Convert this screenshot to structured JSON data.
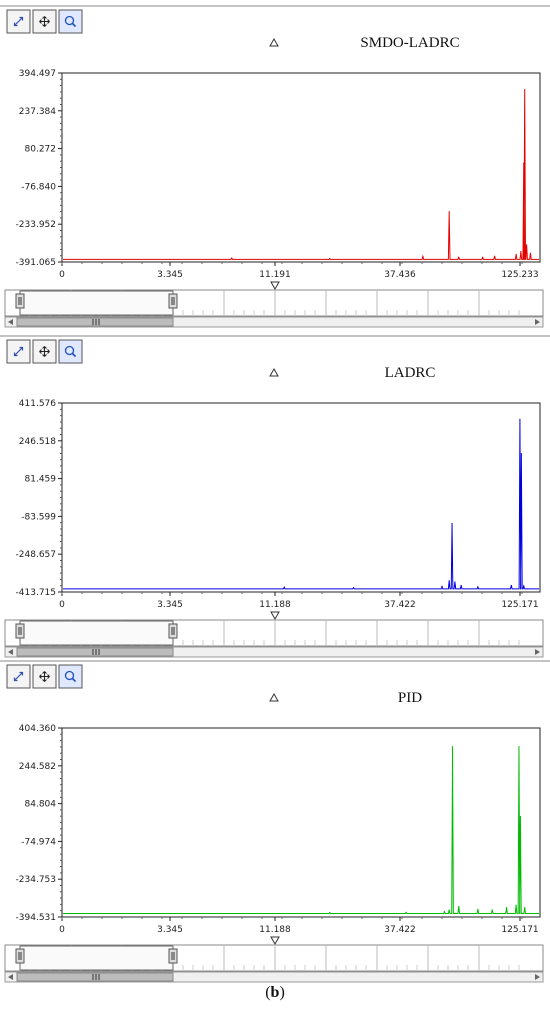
{
  "caption": {
    "open": "(",
    "letter": "b",
    "close": ")"
  },
  "colors": {
    "SMDO-LADRC": "#e60000",
    "LADRC": "#0000e0",
    "PID": "#00bb00"
  },
  "toolbar": {
    "icons": [
      "zoom-extents-icon",
      "pan-icon",
      "zoom-icon"
    ]
  },
  "chart_data": [
    {
      "type": "line",
      "title": "SMDO-LADRC",
      "color": "#e60000",
      "xlabel": "",
      "ylabel": "",
      "y_ticks": [
        "394.497",
        "237.384",
        "80.272",
        "-76.840",
        "-233.952",
        "-391.065"
      ],
      "x_ticks": [
        "0",
        "3.345",
        "11.191",
        "37.436",
        "125.233"
      ],
      "ylim": [
        -391.065,
        394.497
      ],
      "baseline": -380,
      "grid": false,
      "peaks": [
        {
          "x": 0.355,
          "y": -375
        },
        {
          "x": 0.56,
          "y": -377
        },
        {
          "x": 0.755,
          "y": -368
        },
        {
          "x": 0.81,
          "y": -182
        },
        {
          "x": 0.83,
          "y": -372
        },
        {
          "x": 0.88,
          "y": -372
        },
        {
          "x": 0.905,
          "y": -367
        },
        {
          "x": 0.95,
          "y": -360
        },
        {
          "x": 0.96,
          "y": -348
        },
        {
          "x": 0.968,
          "y": 325
        },
        {
          "x": 0.966,
          "y": 20
        },
        {
          "x": 0.972,
          "y": -320
        },
        {
          "x": 0.98,
          "y": -355
        }
      ]
    },
    {
      "type": "line",
      "title": "LADRC",
      "color": "#0000e0",
      "xlabel": "",
      "ylabel": "",
      "y_ticks": [
        "411.576",
        "246.518",
        "81.459",
        "-83.599",
        "-248.657",
        "-413.715"
      ],
      "x_ticks": [
        "0",
        "3.345",
        "11.188",
        "37.422",
        "125.171"
      ],
      "ylim": [
        -413.715,
        411.576
      ],
      "baseline": -400,
      "grid": false,
      "peaks": [
        {
          "x": 0.465,
          "y": -393
        },
        {
          "x": 0.61,
          "y": -395
        },
        {
          "x": 0.795,
          "y": -390
        },
        {
          "x": 0.81,
          "y": -365
        },
        {
          "x": 0.816,
          "y": -115
        },
        {
          "x": 0.822,
          "y": -370
        },
        {
          "x": 0.835,
          "y": -385
        },
        {
          "x": 0.87,
          "y": -392
        },
        {
          "x": 0.94,
          "y": -385
        },
        {
          "x": 0.958,
          "y": 340
        },
        {
          "x": 0.961,
          "y": 190
        },
        {
          "x": 0.966,
          "y": -388
        }
      ]
    },
    {
      "type": "line",
      "title": "PID",
      "color": "#00bb00",
      "xlabel": "",
      "ylabel": "",
      "y_ticks": [
        "404.360",
        "244.582",
        "84.804",
        "-74.974",
        "-234.753",
        "-394.531"
      ],
      "x_ticks": [
        "0",
        "3.345",
        "11.188",
        "37.422",
        "125.171"
      ],
      "ylim": [
        -394.531,
        404.36
      ],
      "baseline": -380,
      "grid": false,
      "peaks": [
        {
          "x": 0.56,
          "y": -376
        },
        {
          "x": 0.72,
          "y": -375
        },
        {
          "x": 0.8,
          "y": -372
        },
        {
          "x": 0.81,
          "y": -365
        },
        {
          "x": 0.817,
          "y": 325
        },
        {
          "x": 0.83,
          "y": -350
        },
        {
          "x": 0.87,
          "y": -362
        },
        {
          "x": 0.9,
          "y": -365
        },
        {
          "x": 0.93,
          "y": -355
        },
        {
          "x": 0.95,
          "y": -345
        },
        {
          "x": 0.956,
          "y": 325
        },
        {
          "x": 0.959,
          "y": 30
        },
        {
          "x": 0.968,
          "y": -355
        }
      ]
    }
  ]
}
